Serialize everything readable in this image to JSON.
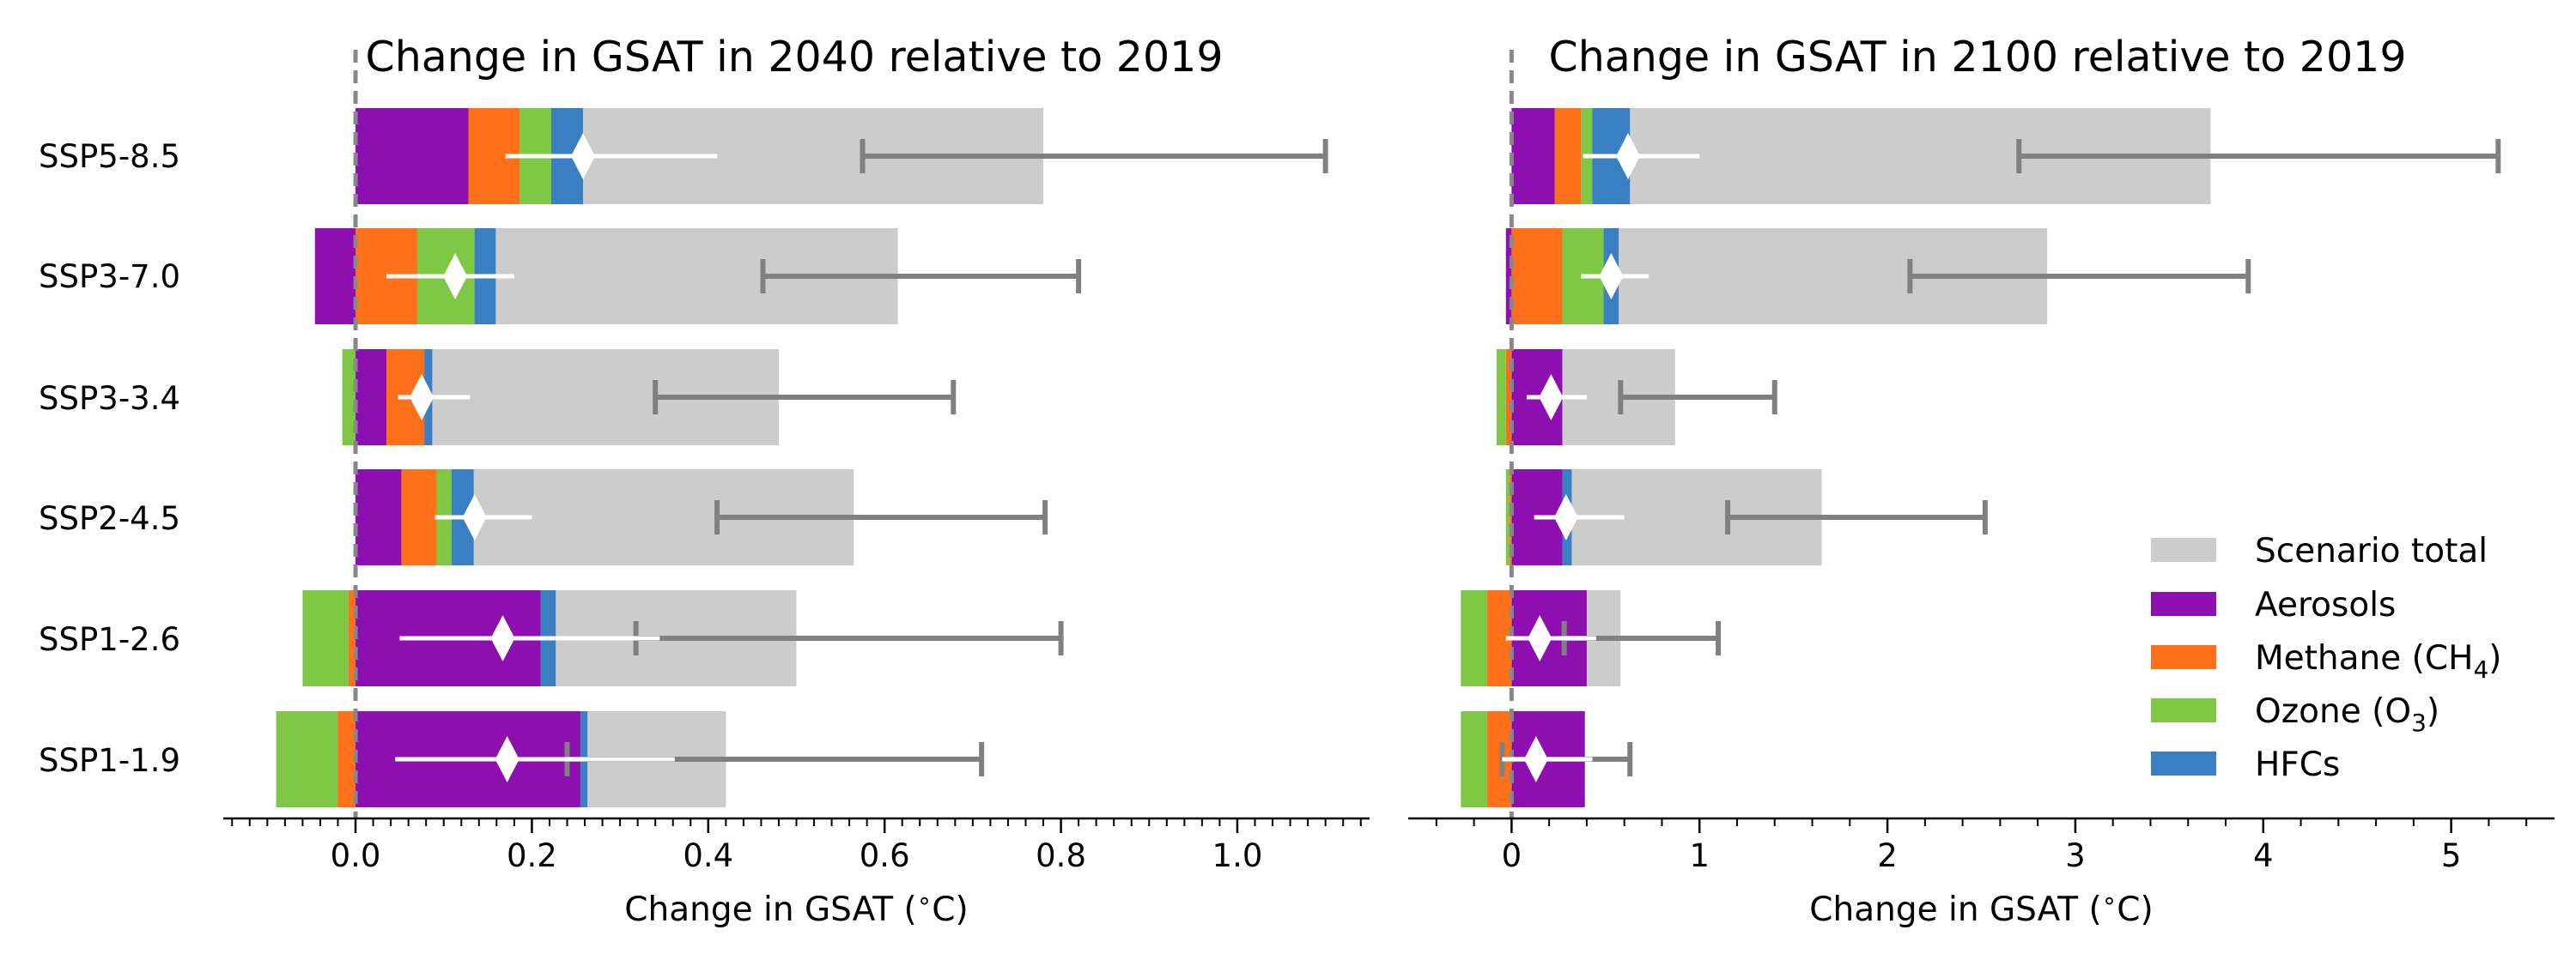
{
  "chart_data": [
    {
      "type": "bar",
      "orientation": "horizontal",
      "stacked": true,
      "title": "Change in GSAT in 2040 relative to 2019",
      "xlabel": "Change in GSAT ($^\\circ$C)",
      "xlabel_parts": {
        "pre": "Change in GSAT (",
        "sup": "∘",
        "post": "C)"
      },
      "xlim": [
        -0.15,
        1.15
      ],
      "xticks": [
        0.0,
        0.2,
        0.4,
        0.6,
        0.8,
        1.0
      ],
      "xtick_labels": [
        "0.0",
        "0.2",
        "0.4",
        "0.6",
        "0.8",
        "1.0"
      ],
      "minor_step": 0.02,
      "zero_line": true,
      "grid": false,
      "categories": [
        "SSP5-8.5",
        "SSP3-7.0",
        "SSP3-3.4",
        "SSP2-4.5",
        "SSP1-2.6",
        "SSP1-1.9"
      ],
      "scenario_total": {
        "values": [
          0.78,
          0.615,
          0.48,
          0.565,
          0.5,
          0.42
        ],
        "range_low": [
          0.575,
          0.462,
          0.34,
          0.41,
          0.318,
          0.24
        ],
        "range_high": [
          1.1,
          0.82,
          0.678,
          0.782,
          0.8,
          0.71
        ]
      },
      "series": [
        {
          "name": "Aerosols",
          "values": [
            0.128,
            -0.046,
            0.035,
            0.052,
            0.21,
            0.255
          ]
        },
        {
          "name": "Methane (CH₄)",
          "values": [
            0.058,
            0.07,
            0.043,
            0.04,
            -0.008,
            -0.02
          ]
        },
        {
          "name": "Ozone (O₃)",
          "values": [
            0.036,
            0.065,
            -0.015,
            0.017,
            -0.052,
            -0.07
          ]
        },
        {
          "name": "HFCs",
          "values": [
            0.036,
            0.024,
            0.009,
            0.025,
            0.017,
            0.008
          ]
        }
      ],
      "composite_total": {
        "values": [
          0.258,
          0.113,
          0.075,
          0.135,
          0.167,
          0.172
        ],
        "range_low": [
          0.17,
          0.035,
          0.048,
          0.09,
          0.05,
          0.045
        ],
        "range_high": [
          0.41,
          0.18,
          0.13,
          0.2,
          0.345,
          0.362
        ]
      }
    },
    {
      "type": "bar",
      "orientation": "horizontal",
      "stacked": true,
      "title": "Change in GSAT in 2100 relative to 2019",
      "xlabel": "Change in GSAT ($^\\circ$C)",
      "xlabel_parts": {
        "pre": "Change in GSAT (",
        "sup": "∘",
        "post": "C)"
      },
      "xlim": [
        -0.55,
        5.55
      ],
      "xticks": [
        0,
        1,
        2,
        3,
        4,
        5
      ],
      "xtick_labels": [
        "0",
        "1",
        "2",
        "3",
        "4",
        "5"
      ],
      "minor_step": 0.2,
      "zero_line": true,
      "grid": false,
      "categories": [
        "SSP5-8.5",
        "SSP3-7.0",
        "SSP3-3.4",
        "SSP2-4.5",
        "SSP1-2.6",
        "SSP1-1.9"
      ],
      "scenario_total": {
        "values": [
          3.72,
          2.85,
          0.87,
          1.65,
          0.58,
          0.2
        ],
        "range_low": [
          2.7,
          2.12,
          0.58,
          1.15,
          0.28,
          -0.05
        ],
        "range_high": [
          5.25,
          3.92,
          1.4,
          2.52,
          1.1,
          0.63
        ]
      },
      "series": [
        {
          "name": "Aerosols",
          "values": [
            0.23,
            -0.03,
            0.27,
            0.27,
            0.4,
            0.39
          ]
        },
        {
          "name": "Methane (CH₄)",
          "values": [
            0.14,
            0.27,
            -0.03,
            -0.01,
            -0.13,
            -0.13
          ]
        },
        {
          "name": "Ozone (O₃)",
          "values": [
            0.06,
            0.22,
            -0.05,
            -0.02,
            -0.14,
            -0.14
          ]
        },
        {
          "name": "HFCs",
          "values": [
            0.2,
            0.08,
            0.0,
            0.05,
            0.0,
            0.0
          ]
        }
      ],
      "composite_total": {
        "values": [
          0.62,
          0.53,
          0.21,
          0.29,
          0.15,
          0.13
        ],
        "range_low": [
          0.38,
          0.37,
          0.08,
          0.12,
          -0.03,
          -0.05
        ],
        "range_high": [
          1.0,
          0.73,
          0.4,
          0.6,
          0.45,
          0.43
        ]
      }
    }
  ],
  "legend": {
    "placement": "lower-right",
    "items": [
      {
        "label": "Scenario total",
        "color": "#cccccc"
      },
      {
        "label": "Aerosols",
        "color": "#8e0fb0"
      },
      {
        "label": "Methane (CH",
        "sub": "4",
        "tail": ")",
        "color": "#ff7018"
      },
      {
        "label": "Ozone (O",
        "sub": "3",
        "tail": ")",
        "color": "#7fc846"
      },
      {
        "label": "HFCs",
        "color": "#3a7fc1"
      }
    ]
  },
  "colors": {
    "scenario_total": "#cccccc",
    "aerosols": "#8e0fb0",
    "methane": "#ff7018",
    "ozone": "#7fc846",
    "hfcs": "#3a7fc1",
    "range_bar": "#808080",
    "zero_line": "#888888",
    "composite_marker": "#ffffff"
  }
}
